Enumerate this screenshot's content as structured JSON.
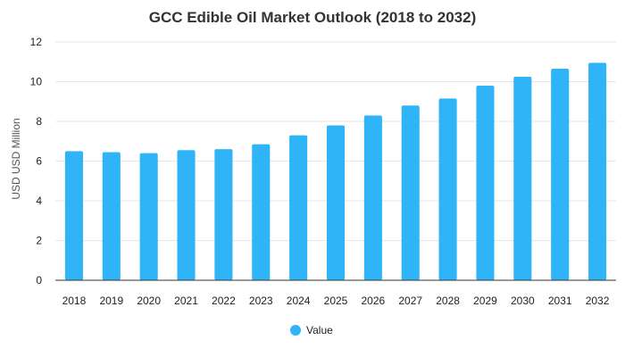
{
  "chart_data": {
    "type": "bar",
    "title": "GCC Edible Oil Market Outlook (2018 to 2032)",
    "xlabel": "",
    "ylabel": "USD USD Million",
    "categories": [
      "2018",
      "2019",
      "2020",
      "2021",
      "2022",
      "2023",
      "2024",
      "2025",
      "2026",
      "2027",
      "2028",
      "2029",
      "2030",
      "2031",
      "2032"
    ],
    "series": [
      {
        "name": "Value",
        "values": [
          6.5,
          6.45,
          6.4,
          6.55,
          6.6,
          6.85,
          7.3,
          7.8,
          8.3,
          8.8,
          9.15,
          9.8,
          10.25,
          10.65,
          10.95
        ]
      }
    ],
    "ylim": [
      0,
      12
    ],
    "yticks": [
      0,
      2,
      4,
      6,
      8,
      10,
      12
    ],
    "grid": true,
    "legend_position": "bottom-center",
    "bar_color": "#2eb4f7"
  }
}
